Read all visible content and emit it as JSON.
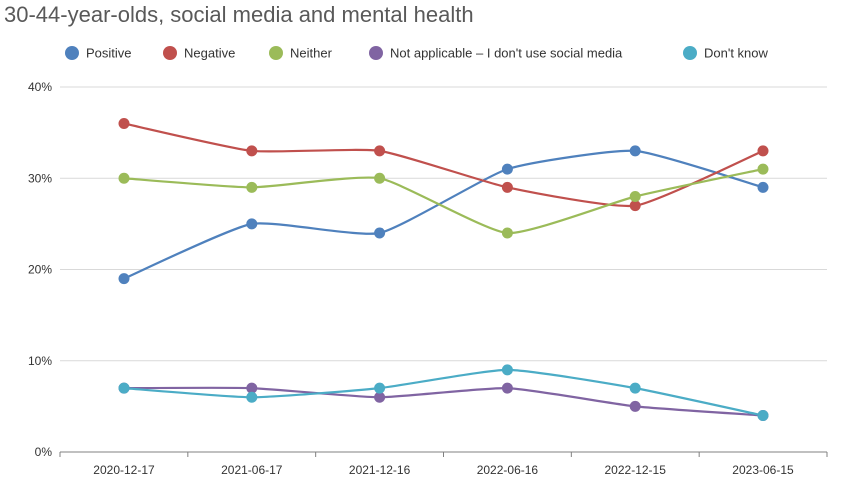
{
  "chart_data": {
    "type": "line",
    "title": "30-44-year-olds, social media and mental health",
    "xlabel": "",
    "ylabel": "",
    "categories": [
      "2020-12-17",
      "2021-06-17",
      "2021-12-16",
      "2022-06-16",
      "2022-12-15",
      "2023-06-15"
    ],
    "y_ticks": [
      "0%",
      "10%",
      "20%",
      "30%",
      "40%"
    ],
    "ylim": [
      0,
      40
    ],
    "grid": true,
    "legend_position": "top",
    "series": [
      {
        "name": "Positive",
        "color": "#4f81bd",
        "values": [
          19,
          25,
          24,
          31,
          33,
          29
        ]
      },
      {
        "name": "Negative",
        "color": "#c0504d",
        "values": [
          36,
          33,
          33,
          29,
          27,
          33
        ]
      },
      {
        "name": "Neither",
        "color": "#9bbb59",
        "values": [
          30,
          29,
          30,
          24,
          28,
          31
        ]
      },
      {
        "name": "Not applicable – I don't use social media",
        "color": "#8064a2",
        "values": [
          7,
          7,
          6,
          7,
          5,
          4
        ]
      },
      {
        "name": "Don't know",
        "color": "#4bacc6",
        "values": [
          7,
          6,
          7,
          9,
          7,
          4
        ]
      }
    ]
  }
}
